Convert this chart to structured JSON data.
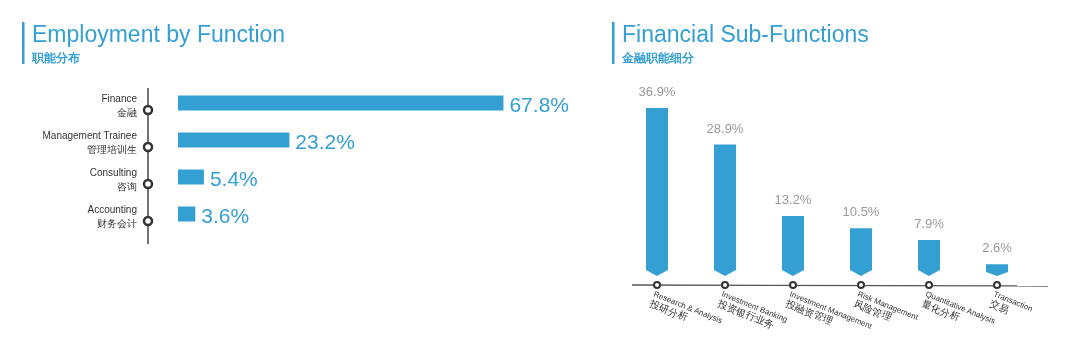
{
  "chart_data": [
    {
      "type": "bar",
      "orientation": "horizontal",
      "title": "Employment by Function",
      "subtitle": "职能分布",
      "categories": [
        "Finance\n金融",
        "Management Trainee\n管理培训生",
        "Consulting\n咨询",
        "Accounting\n财务会计"
      ],
      "values": [
        67.8,
        23.2,
        5.4,
        3.6
      ],
      "value_labels": [
        "67.8%",
        "23.2%",
        "5.4%",
        "3.6%"
      ],
      "color": "#349fd3"
    },
    {
      "type": "bar",
      "title": "Financial Sub-Functions",
      "subtitle": "金融职能细分",
      "categories": [
        "Research & Analysis\n投研分析",
        "Investment Banking\n投资银行业务",
        "Investment Management\n投融资管理",
        "Risk Management\n风险管理",
        "Quantitative Analysis\n量化分析",
        "Transaction\n交易"
      ],
      "values": [
        36.9,
        28.9,
        13.2,
        10.5,
        7.9,
        2.6
      ],
      "value_labels": [
        "36.9%",
        "28.9%",
        "13.2%",
        "10.5%",
        "7.9%",
        "2.6%"
      ],
      "color": "#349fd3"
    }
  ]
}
